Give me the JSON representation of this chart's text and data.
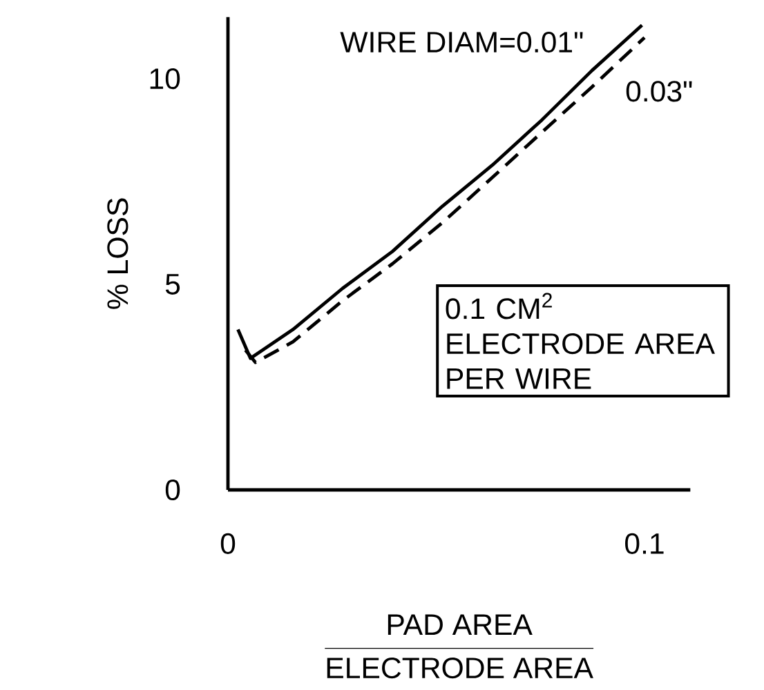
{
  "chart_data": {
    "type": "line",
    "xlabel": "\\frac{\\mbox{PAD AREA}}{\\mbox{ELECTRODE AREA}}",
    "ylabel": "% LOSS",
    "x": [
      0.0024,
      0.0054,
      0.0156,
      0.0275,
      0.0395,
      0.0515,
      0.0635,
      0.0754,
      0.0874,
      0.0994
    ],
    "series": [
      {
        "name": "WIRE DIAM=0.01\"",
        "color": "#000000",
        "line_style": "solid",
        "values": [
          3.9,
          3.2,
          3.9,
          4.9,
          5.8,
          6.9,
          7.9,
          9.0,
          10.2,
          11.3
        ]
      },
      {
        "name": "0.03\"",
        "color": "#000000",
        "line_style": "dashed",
        "x": [
          0.0042,
          0.0066,
          0.0156,
          0.0275,
          0.0395,
          0.0515,
          0.0635,
          0.0754,
          0.0874,
          0.1
        ],
        "values": [
          3.4,
          3.1,
          3.6,
          4.6,
          5.5,
          6.5,
          7.6,
          8.7,
          9.8,
          11.0
        ]
      }
    ],
    "xlim": [
      0,
      0.111
    ],
    "ylim": [
      0,
      11.5
    ],
    "xticks": [
      0,
      0.1
    ],
    "yticks": [
      0,
      5,
      10
    ],
    "annotations": [
      "0.1 CM$^{2}$ ELECTRODE AREA PER WIRE"
    ]
  }
}
